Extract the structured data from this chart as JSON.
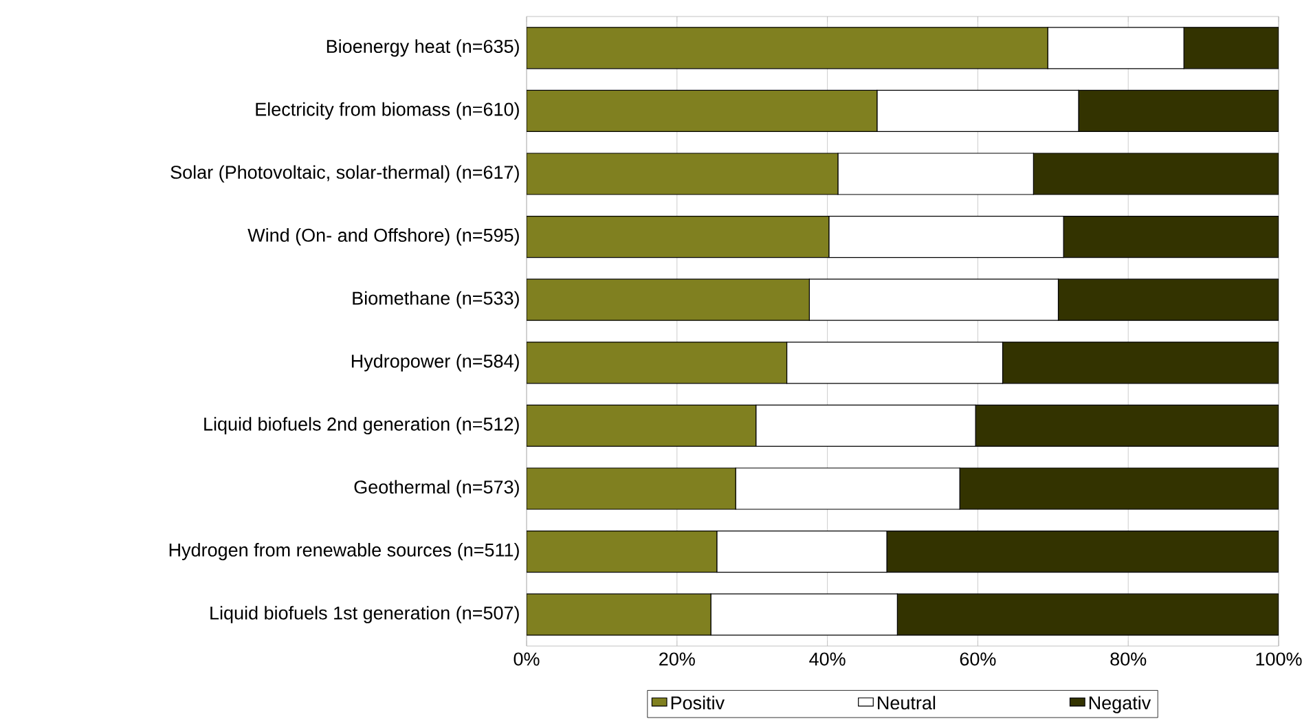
{
  "chart_data": {
    "type": "bar",
    "orientation": "horizontal",
    "stacked": true,
    "categories": [
      "Bioenergy heat (n=635)",
      "Electricity from biomass (n=610)",
      "Solar (Photovoltaic, solar-thermal) (n=617)",
      "Wind (On- and Offshore) (n=595)",
      "Biomethane (n=533)",
      "Hydropower (n=584)",
      "Liquid biofuels 2nd generation (n=512)",
      "Geothermal (n=573)",
      "Hydrogen from renewable sources (n=511)",
      "Liquid biofuels 1st generation (n=507)"
    ],
    "series": [
      {
        "name": "Positiv",
        "color": "#808020",
        "values": [
          69.3,
          46.6,
          41.4,
          40.2,
          37.6,
          34.6,
          30.5,
          27.8,
          25.3,
          24.5
        ]
      },
      {
        "name": "Neutral",
        "color": "#ffffff",
        "values": [
          18.1,
          26.8,
          26.0,
          31.2,
          33.1,
          28.7,
          29.2,
          29.8,
          22.6,
          24.8
        ]
      },
      {
        "name": "Negativ",
        "color": "#333300",
        "values": [
          12.6,
          26.6,
          32.6,
          28.6,
          29.3,
          36.7,
          40.3,
          42.4,
          52.1,
          50.7
        ]
      }
    ],
    "xlim": [
      0,
      100
    ],
    "xticks": [
      {
        "value": 0,
        "label": "0%"
      },
      {
        "value": 20,
        "label": "20%"
      },
      {
        "value": 40,
        "label": "40%"
      },
      {
        "value": 60,
        "label": "60%"
      },
      {
        "value": 80,
        "label": "80%"
      },
      {
        "value": 100,
        "label": "100%"
      }
    ],
    "grid": "x",
    "legend": "bottom"
  }
}
